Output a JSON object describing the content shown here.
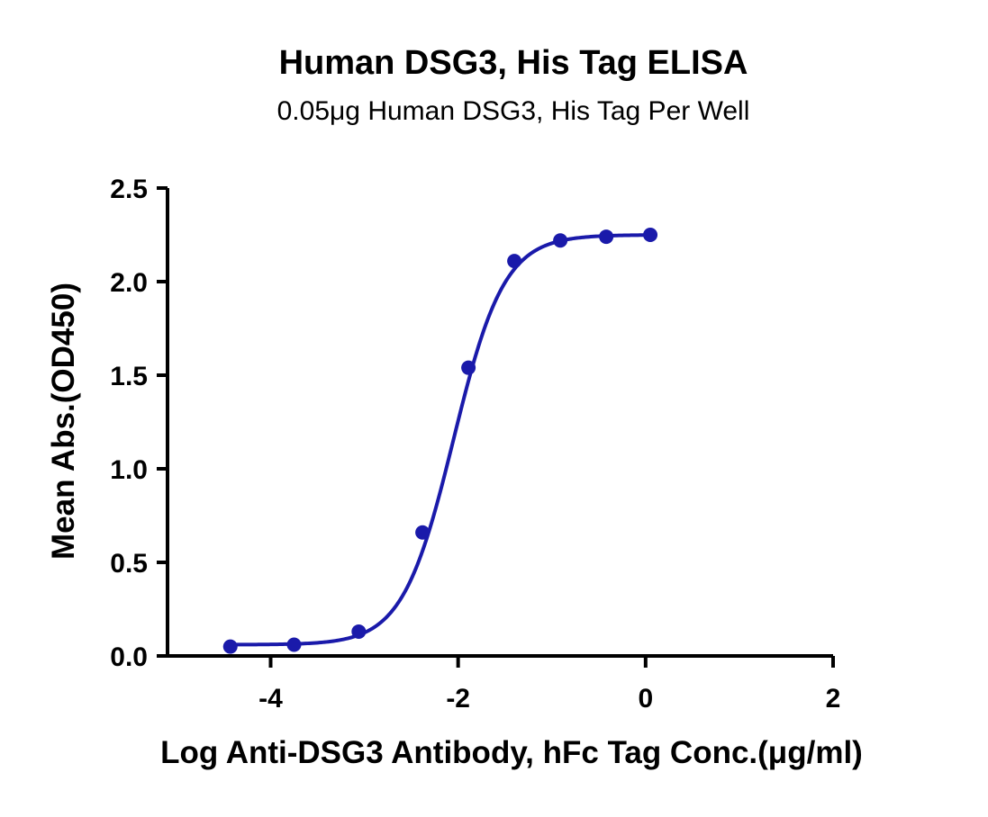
{
  "chart_data": {
    "type": "line",
    "title": "Human DSG3, His Tag ELISA",
    "subtitle": "0.05μg Human DSG3, His Tag Per Well",
    "xlabel": "Log Anti-DSG3 Antibody, hFc Tag Conc.(μg/ml)",
    "ylabel": "Mean Abs.(OD450)",
    "xlim": [
      -5.1,
      2
    ],
    "ylim": [
      0,
      2.5
    ],
    "x_ticks": [
      -4,
      -2,
      0,
      2
    ],
    "x_tick_labels": [
      "-4",
      "-2",
      "0",
      "2"
    ],
    "y_ticks": [
      0,
      0.5,
      1.0,
      1.5,
      2.0,
      2.5
    ],
    "y_tick_labels": [
      "0.0",
      "0.5",
      "1.0",
      "1.5",
      "2.0",
      "2.5"
    ],
    "grid": false,
    "series": [
      {
        "color": "#1a1aaa",
        "points": [
          {
            "x": -4.43,
            "y": 0.05
          },
          {
            "x": -3.75,
            "y": 0.06
          },
          {
            "x": -3.06,
            "y": 0.13
          },
          {
            "x": -2.38,
            "y": 0.66
          },
          {
            "x": -1.89,
            "y": 1.54
          },
          {
            "x": -1.4,
            "y": 2.11
          },
          {
            "x": -0.91,
            "y": 2.22
          },
          {
            "x": -0.42,
            "y": 2.24
          },
          {
            "x": 0.05,
            "y": 2.25
          }
        ],
        "fit": {
          "bottom": 0.06,
          "top": 2.25,
          "logEC50": -2.05,
          "hill": 1.6
        }
      }
    ]
  }
}
